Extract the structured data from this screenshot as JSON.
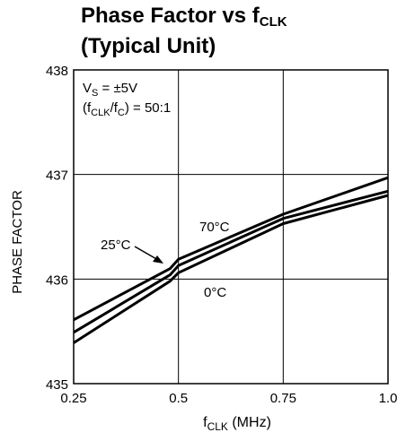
{
  "chart_data": {
    "type": "line",
    "title": {
      "line1_prefix": "Phase Factor vs f",
      "line1_sub": "CLK",
      "line2": "(Typical Unit)"
    },
    "conditions": {
      "vs_prefix": "V",
      "vs_sub": "S",
      "vs_suffix": " = ±5V",
      "ratio_prefix": "(f",
      "ratio_sub1": "CLK",
      "ratio_mid": "/f",
      "ratio_sub2": "C",
      "ratio_suffix": ") = 50:1"
    },
    "xlabel": {
      "prefix": "f",
      "sub": "CLK",
      "suffix": " (MHz)"
    },
    "ylabel": "PHASE FACTOR",
    "xlim": [
      0.25,
      1.0
    ],
    "ylim": [
      435,
      438
    ],
    "x_ticks": [
      "0.25",
      "0.5",
      "0.75",
      "1.0"
    ],
    "y_ticks": [
      "435",
      "436",
      "437",
      "438"
    ],
    "grid": true,
    "series": [
      {
        "name": "25°C",
        "points": [
          [
            0.25,
            435.61
          ],
          [
            0.48,
            436.1
          ],
          [
            0.5,
            436.19
          ],
          [
            0.75,
            436.62
          ],
          [
            1.0,
            436.97
          ]
        ]
      },
      {
        "name": "70°C",
        "points": [
          [
            0.25,
            435.49
          ],
          [
            0.48,
            436.04
          ],
          [
            0.5,
            436.13
          ],
          [
            0.75,
            436.58
          ],
          [
            1.0,
            436.84
          ]
        ]
      },
      {
        "name": "0°C",
        "points": [
          [
            0.25,
            435.39
          ],
          [
            0.48,
            435.98
          ],
          [
            0.5,
            436.06
          ],
          [
            0.75,
            436.53
          ],
          [
            1.0,
            436.8
          ]
        ]
      }
    ],
    "series_labels": [
      "25°C",
      "70°C",
      "0°C"
    ]
  }
}
